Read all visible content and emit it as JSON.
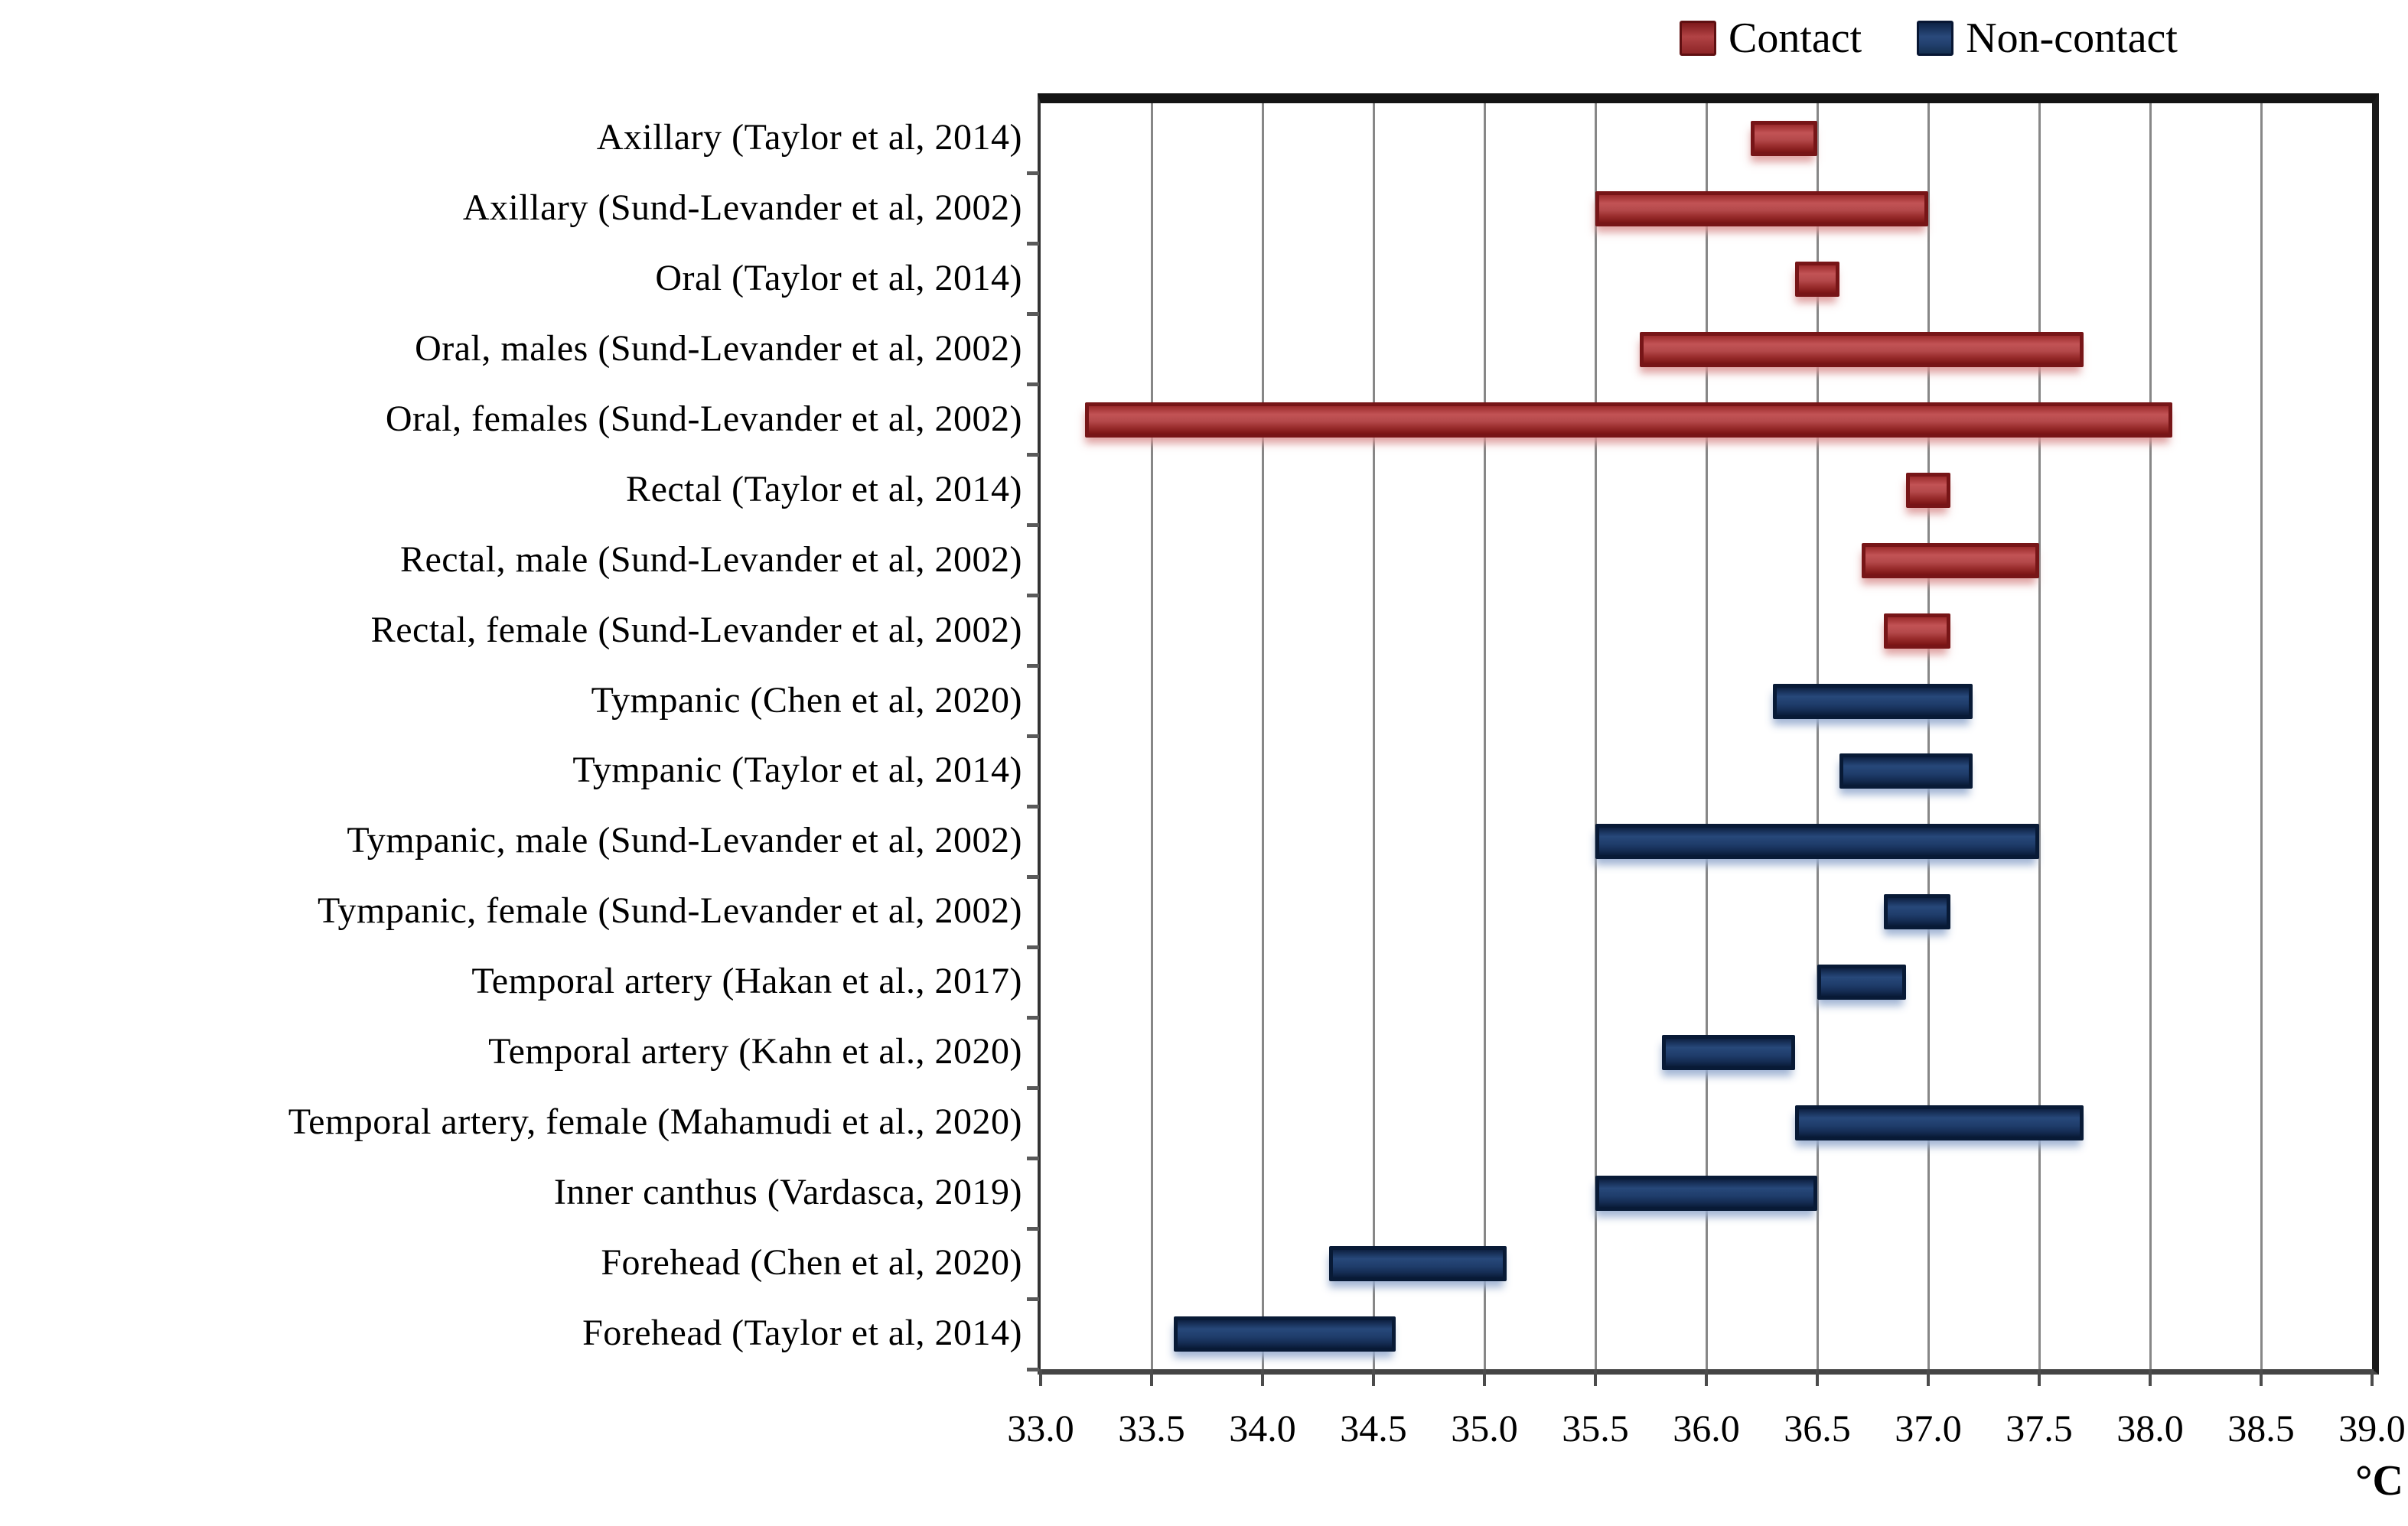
{
  "legend": {
    "items": [
      {
        "label": "Contact",
        "color": "#9c3032"
      },
      {
        "label": "Non-contact",
        "color": "#1e3a63"
      }
    ]
  },
  "chart_data": {
    "type": "bar",
    "subtype": "horizontal-floating-range-bars",
    "title": "",
    "xlabel": "°C",
    "ylabel": "",
    "xlim": [
      33.0,
      39.0
    ],
    "xticks": [
      33.0,
      33.5,
      34.0,
      34.5,
      35.0,
      35.5,
      36.0,
      36.5,
      37.0,
      37.5,
      38.0,
      38.5,
      39.0
    ],
    "grid": "vertical",
    "legend_position": "top-right",
    "series": [
      {
        "name": "Contact",
        "color": "#9c3032"
      },
      {
        "name": "Non-contact",
        "color": "#1e3a63"
      }
    ],
    "rows": [
      {
        "label": "Axillary (Taylor et al, 2014)",
        "series": "Contact",
        "range_c": [
          36.2,
          36.5
        ]
      },
      {
        "label": "Axillary (Sund-Levander et al, 2002)",
        "series": "Contact",
        "range_c": [
          35.5,
          37.0
        ]
      },
      {
        "label": "Oral (Taylor et al, 2014)",
        "series": "Contact",
        "range_c": [
          36.4,
          36.6
        ]
      },
      {
        "label": "Oral, males (Sund-Levander et al, 2002)",
        "series": "Contact",
        "range_c": [
          35.7,
          37.7
        ]
      },
      {
        "label": "Oral, females (Sund-Levander et al, 2002)",
        "series": "Contact",
        "range_c": [
          33.2,
          38.1
        ]
      },
      {
        "label": "Rectal (Taylor et al, 2014)",
        "series": "Contact",
        "range_c": [
          36.9,
          37.1
        ]
      },
      {
        "label": "Rectal, male (Sund-Levander et al, 2002)",
        "series": "Contact",
        "range_c": [
          36.7,
          37.5
        ]
      },
      {
        "label": "Rectal, female (Sund-Levander et al, 2002)",
        "series": "Contact",
        "range_c": [
          36.8,
          37.1
        ]
      },
      {
        "label": "Tympanic (Chen et al, 2020)",
        "series": "Non-contact",
        "range_c": [
          36.3,
          37.2
        ]
      },
      {
        "label": "Tympanic (Taylor et al, 2014)",
        "series": "Non-contact",
        "range_c": [
          36.6,
          37.2
        ]
      },
      {
        "label": "Tympanic, male (Sund-Levander et al, 2002)",
        "series": "Non-contact",
        "range_c": [
          35.5,
          37.5
        ]
      },
      {
        "label": "Tympanic, female (Sund-Levander et al, 2002)",
        "series": "Non-contact",
        "range_c": [
          36.8,
          37.1
        ]
      },
      {
        "label": "Temporal artery (Hakan et al., 2017)",
        "series": "Non-contact",
        "range_c": [
          36.5,
          36.9
        ]
      },
      {
        "label": "Temporal artery (Kahn et al., 2020)",
        "series": "Non-contact",
        "range_c": [
          35.8,
          36.4
        ]
      },
      {
        "label": "Temporal artery, female (Mahamudi et al., 2020)",
        "series": "Non-contact",
        "range_c": [
          36.4,
          37.7
        ]
      },
      {
        "label": "Inner canthus (Vardasca, 2019)",
        "series": "Non-contact",
        "range_c": [
          35.5,
          36.5
        ]
      },
      {
        "label": "Forehead (Chen et al, 2020)",
        "series": "Non-contact",
        "range_c": [
          34.3,
          35.1
        ]
      },
      {
        "label": "Forehead (Taylor et al, 2014)",
        "series": "Non-contact",
        "range_c": [
          33.6,
          34.6
        ]
      }
    ]
  }
}
